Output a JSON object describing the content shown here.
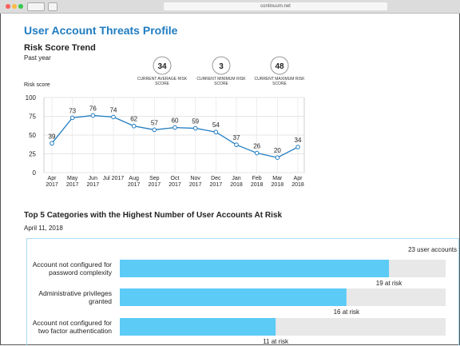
{
  "browser": {
    "url": "continuum.net"
  },
  "page_title": "User Account Threats Profile",
  "stats": [
    {
      "value": 34,
      "label": "CURRENT AVERAGE RISK SCORE"
    },
    {
      "value": 3,
      "label": "CURRENT MINIMUM RISK SCORE"
    },
    {
      "value": 48,
      "label": "CURRENT MAXIMUM RISK SCORE"
    }
  ],
  "chart_data": [
    {
      "type": "line",
      "title": "Risk Score Trend",
      "subtitle": "Past year",
      "y_label": "Risk score",
      "categories": [
        "Apr 2017",
        "May 2017",
        "Jun 2017",
        "Jul 2017",
        "Aug 2017",
        "Sep 2017",
        "Oct 2017",
        "Nov 2017",
        "Dec 2017",
        "Jan 2018",
        "Feb 2018",
        "Mar 2018",
        "Apr 2018"
      ],
      "values": [
        39,
        73,
        76,
        74,
        62,
        57,
        60,
        59,
        54,
        37,
        26,
        20,
        34
      ],
      "color": "#1f7cc1",
      "ylim": [
        0,
        100
      ],
      "yticks": [
        0,
        25,
        50,
        75,
        100
      ],
      "grid": true
    },
    {
      "type": "bar",
      "orientation": "horizontal",
      "title": "Top 5 Categories with the Highest Number of User Accounts At Risk",
      "subtitle": "April 11, 2018",
      "max_label": "23 user accounts",
      "categories": [
        "Account not configured for password complexity",
        "Administrative privileges granted",
        "Account not configured for two factor authentication"
      ],
      "values": [
        19,
        16,
        11
      ],
      "value_labels": [
        "19 at risk",
        "16 at risk",
        "11 at risk"
      ],
      "color": "#5ccbf6",
      "track_color": "#e8e8e8",
      "xlim": [
        0,
        23
      ]
    }
  ]
}
